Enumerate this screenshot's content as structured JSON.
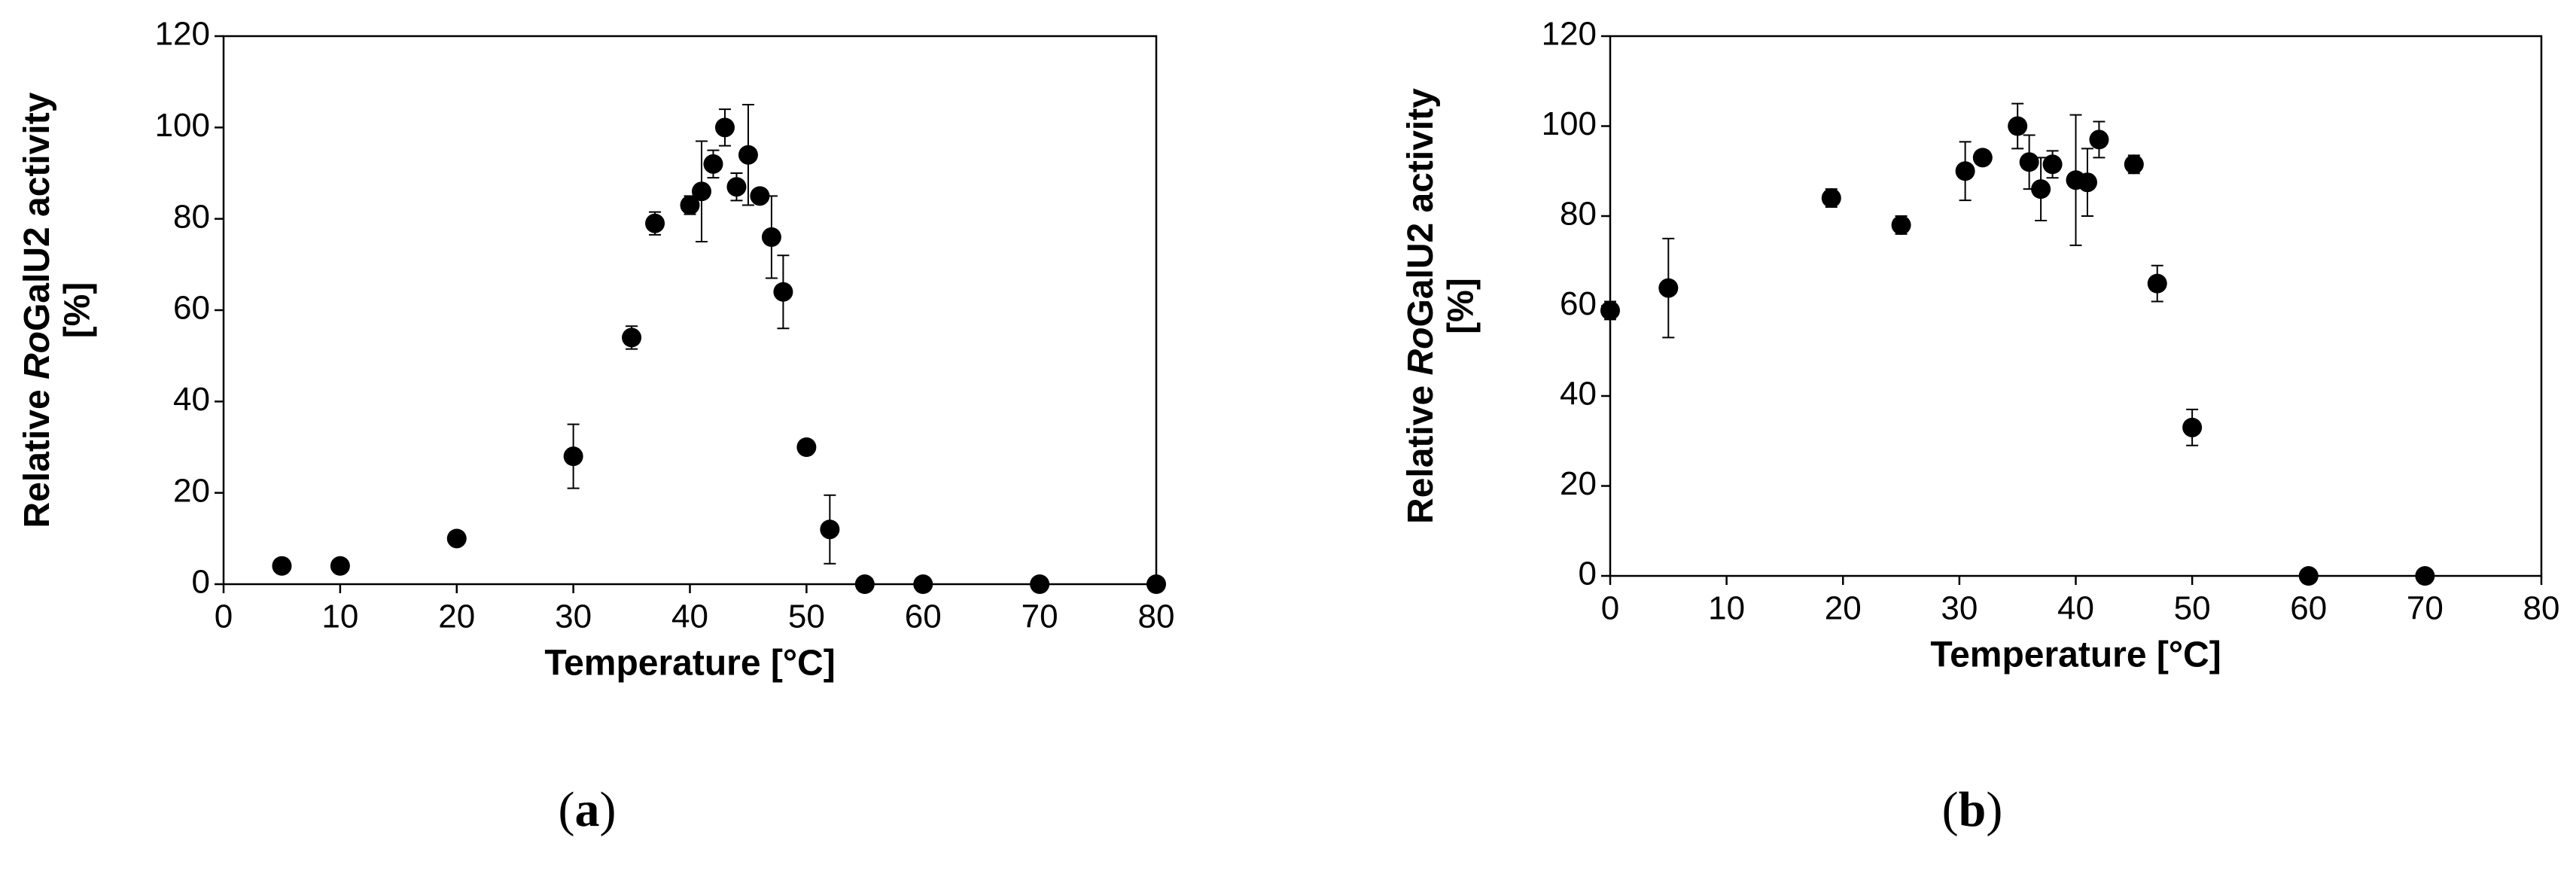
{
  "chart_data": [
    {
      "type": "scatter",
      "panel_label": [
        "(",
        "a",
        ")"
      ],
      "xlabel": "Temperature [°C]",
      "ylabel": {
        "parts": [
          "Relative ",
          "Ro",
          "GalU2 activity"
        ],
        "unit": "[%]"
      },
      "xlim": [
        0,
        80
      ],
      "xticks": [
        0,
        10,
        20,
        30,
        40,
        50,
        60,
        70,
        80
      ],
      "ylim": [
        0,
        120
      ],
      "yticks": [
        0,
        20,
        40,
        60,
        80,
        100,
        120
      ],
      "x": [
        5,
        10,
        20,
        30,
        35,
        37,
        40,
        41,
        42,
        43,
        44,
        45,
        46,
        47,
        48,
        50,
        52,
        55,
        60,
        70,
        80
      ],
      "series": [
        {
          "color": "#000000",
          "values": [
            4,
            4,
            10,
            28,
            54,
            79,
            83,
            86,
            92,
            100,
            87,
            94,
            85,
            76,
            64,
            30,
            12,
            0,
            0,
            0,
            0
          ],
          "errors": [
            0.5,
            0.5,
            1,
            7,
            2.5,
            2.5,
            2,
            11,
            3,
            4,
            3,
            11,
            1,
            9,
            8,
            1.5,
            7.5,
            0,
            0,
            0,
            0
          ]
        }
      ]
    },
    {
      "type": "scatter",
      "panel_label": [
        "(",
        "b",
        ")"
      ],
      "xlabel": "Temperature [°C]",
      "ylabel": {
        "parts": [
          "Relative ",
          "Ro",
          "GalU2 activity"
        ],
        "unit": "[%]"
      },
      "xlim": [
        0,
        80
      ],
      "xticks": [
        0,
        10,
        20,
        30,
        40,
        50,
        60,
        70,
        80
      ],
      "ylim": [
        0,
        120
      ],
      "yticks": [
        0,
        20,
        40,
        60,
        80,
        100,
        120
      ],
      "x": [
        0,
        5,
        19,
        25,
        30.5,
        32,
        35,
        36,
        37,
        38,
        40,
        41,
        42,
        45,
        47,
        50,
        60,
        70
      ],
      "series": [
        {
          "color": "#000000",
          "values": [
            59,
            64,
            84,
            78,
            90,
            93,
            100,
            92,
            86,
            91.5,
            88,
            87.5,
            97,
            91.5,
            65,
            33,
            0,
            0
          ],
          "errors": [
            2,
            11,
            2,
            2,
            6.5,
            1.5,
            5,
            6,
            7,
            3,
            14.5,
            7.5,
            4,
            2,
            4,
            4,
            0,
            0
          ]
        }
      ]
    }
  ]
}
